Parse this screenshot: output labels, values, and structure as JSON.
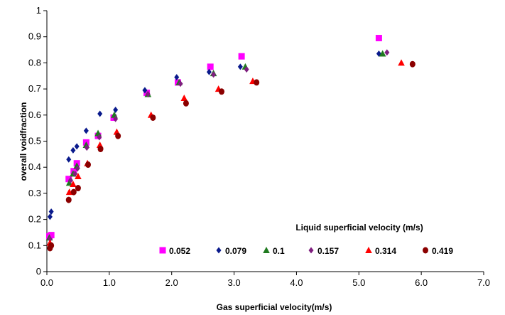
{
  "chart_data": {
    "type": "scatter",
    "xlabel": "Gas superficial velocity(m/s)",
    "ylabel": "overall voidfraction",
    "xlim": [
      0,
      7
    ],
    "ylim": [
      0,
      1
    ],
    "x_ticks": [
      "0.0",
      "1.0",
      "2.0",
      "3.0",
      "4.0",
      "5.0",
      "6.0",
      "7.0"
    ],
    "y_ticks": [
      "0",
      "0.1",
      "0.2",
      "0.3",
      "0.4",
      "0.5",
      "0.6",
      "0.7",
      "0.8",
      "0.9",
      "1"
    ],
    "grid": false,
    "legend_title": "Liquid superficial velocity (m/s)",
    "legend_placement": "bottom-right",
    "series": [
      {
        "name": "0.052",
        "color": "#ff00ff",
        "marker": "square",
        "points": [
          [
            0.04,
            0.135
          ],
          [
            0.07,
            0.14
          ],
          [
            0.35,
            0.355
          ],
          [
            0.43,
            0.385
          ],
          [
            0.48,
            0.415
          ],
          [
            0.63,
            0.495
          ],
          [
            0.82,
            0.52
          ],
          [
            1.07,
            0.59
          ],
          [
            1.6,
            0.685
          ],
          [
            2.1,
            0.725
          ],
          [
            2.62,
            0.785
          ],
          [
            3.12,
            0.825
          ],
          [
            5.32,
            0.895
          ]
        ]
      },
      {
        "name": "0.079",
        "color": "#0a1a8c",
        "marker": "diamond",
        "points": [
          [
            0.05,
            0.21
          ],
          [
            0.07,
            0.23
          ],
          [
            0.35,
            0.43
          ],
          [
            0.42,
            0.465
          ],
          [
            0.48,
            0.48
          ],
          [
            0.63,
            0.54
          ],
          [
            0.85,
            0.605
          ],
          [
            1.1,
            0.62
          ],
          [
            1.57,
            0.695
          ],
          [
            2.08,
            0.745
          ],
          [
            2.6,
            0.765
          ],
          [
            3.1,
            0.785
          ],
          [
            5.32,
            0.835
          ]
        ]
      },
      {
        "name": "0.1",
        "color": "#1f7a1f",
        "marker": "triangle",
        "points": [
          [
            0.04,
            0.13
          ],
          [
            0.36,
            0.34
          ],
          [
            0.42,
            0.375
          ],
          [
            0.48,
            0.405
          ],
          [
            0.63,
            0.485
          ],
          [
            0.82,
            0.53
          ],
          [
            1.08,
            0.6
          ],
          [
            1.62,
            0.68
          ],
          [
            2.12,
            0.725
          ],
          [
            2.67,
            0.76
          ],
          [
            3.18,
            0.785
          ],
          [
            5.38,
            0.835
          ]
        ]
      },
      {
        "name": "0.157",
        "color": "#7f1f7f",
        "marker": "diamond",
        "points": [
          [
            0.05,
            0.125
          ],
          [
            0.38,
            0.35
          ],
          [
            0.45,
            0.375
          ],
          [
            0.49,
            0.395
          ],
          [
            0.64,
            0.475
          ],
          [
            0.84,
            0.515
          ],
          [
            1.1,
            0.585
          ],
          [
            1.62,
            0.68
          ],
          [
            2.14,
            0.72
          ],
          [
            2.67,
            0.755
          ],
          [
            3.2,
            0.775
          ],
          [
            5.45,
            0.84
          ]
        ]
      },
      {
        "name": "0.314",
        "color": "#ff0000",
        "marker": "triangle",
        "points": [
          [
            0.05,
            0.11
          ],
          [
            0.36,
            0.305
          ],
          [
            0.42,
            0.335
          ],
          [
            0.5,
            0.365
          ],
          [
            0.65,
            0.415
          ],
          [
            0.85,
            0.485
          ],
          [
            1.12,
            0.535
          ],
          [
            1.67,
            0.6
          ],
          [
            2.2,
            0.665
          ],
          [
            2.75,
            0.7
          ],
          [
            3.3,
            0.73
          ],
          [
            5.68,
            0.8
          ]
        ]
      },
      {
        "name": "0.419",
        "color": "#8b0000",
        "marker": "circle",
        "points": [
          [
            0.05,
            0.09
          ],
          [
            0.07,
            0.1
          ],
          [
            0.35,
            0.275
          ],
          [
            0.43,
            0.305
          ],
          [
            0.5,
            0.32
          ],
          [
            0.66,
            0.41
          ],
          [
            0.86,
            0.47
          ],
          [
            1.14,
            0.52
          ],
          [
            1.7,
            0.59
          ],
          [
            2.23,
            0.645
          ],
          [
            2.8,
            0.69
          ],
          [
            3.36,
            0.725
          ],
          [
            5.86,
            0.795
          ]
        ]
      }
    ]
  }
}
